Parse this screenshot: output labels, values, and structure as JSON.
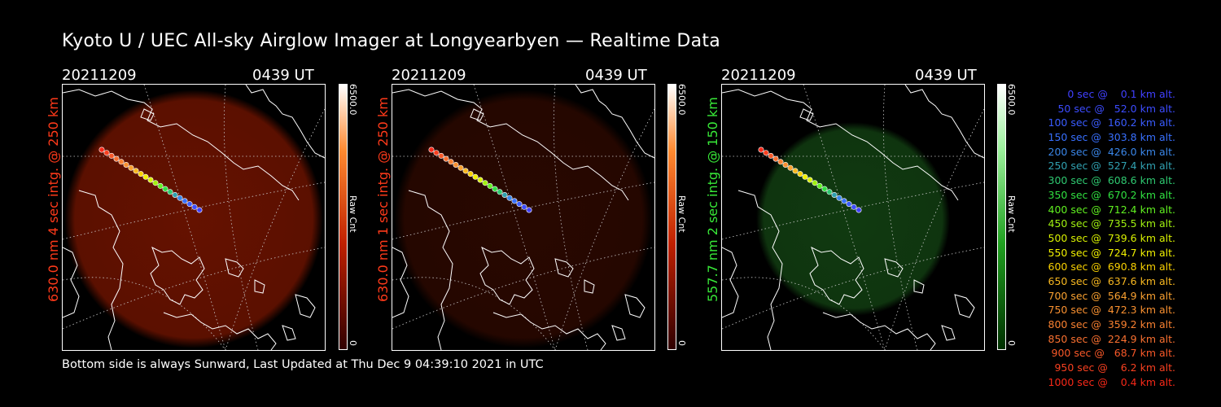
{
  "title": "Kyoto U / UEC All-sky Airglow Imager at Longyearbyen — Realtime Data",
  "colors": {
    "red_label": "#ff3a1a",
    "green_label": "#38e838"
  },
  "panels": [
    {
      "date": "20211209",
      "time": "0439 UT",
      "label": "630.0 nm 4 sec intg. @ 250 km",
      "cbar_max": "6500.0",
      "cbar_min": "0",
      "cbar_unit": "Raw Cnt",
      "glow_color": "#b82000",
      "glow_intensity": 0.55,
      "glow_radius_fraction": 0.56
    },
    {
      "date": "20211209",
      "time": "0439 UT",
      "label": "630.0 nm 1 sec intg. @ 250 km",
      "cbar_max": "6500.0",
      "cbar_min": "0",
      "cbar_unit": "Raw Cnt",
      "glow_color": "#4a0e00",
      "glow_intensity": 0.55,
      "glow_radius_fraction": 0.56
    },
    {
      "date": "20211209",
      "time": "0439 UT",
      "label": "557.7 nm 2 sec intg. @ 150 km",
      "cbar_max": "6500.0",
      "cbar_min": "0",
      "cbar_unit": "Raw Cnt",
      "glow_color": "#1e6a1e",
      "glow_intensity": 0.55,
      "glow_radius_fraction": 0.42
    }
  ],
  "legend": [
    {
      "text": "   0 sec @    0.1 km alt.",
      "color": "#4040ff"
    },
    {
      "text": "  50 sec @   52.0 km alt.",
      "color": "#3c4cff"
    },
    {
      "text": " 100 sec @  160.2 km alt.",
      "color": "#3a5cff"
    },
    {
      "text": " 150 sec @  303.8 km alt.",
      "color": "#3870ff"
    },
    {
      "text": " 200 sec @  426.0 km alt.",
      "color": "#3a86e8"
    },
    {
      "text": " 250 sec @  527.4 km alt.",
      "color": "#30a0b0"
    },
    {
      "text": " 300 sec @  608.6 km alt.",
      "color": "#2ec870"
    },
    {
      "text": " 350 sec @  670.2 km alt.",
      "color": "#30e040"
    },
    {
      "text": " 400 sec @  712.4 km alt.",
      "color": "#60f020"
    },
    {
      "text": " 450 sec @  735.5 km alt.",
      "color": "#a0f010"
    },
    {
      "text": " 500 sec @  739.6 km alt.",
      "color": "#d8f000"
    },
    {
      "text": " 550 sec @  724.7 km alt.",
      "color": "#f0f000"
    },
    {
      "text": " 600 sec @  690.8 km alt.",
      "color": "#f8d000"
    },
    {
      "text": " 650 sec @  637.6 km alt.",
      "color": "#f8b820"
    },
    {
      "text": " 700 sec @  564.9 km alt.",
      "color": "#f8a030"
    },
    {
      "text": " 750 sec @  472.3 km alt.",
      "color": "#f89030"
    },
    {
      "text": " 800 sec @  359.2 km alt.",
      "color": "#f88030"
    },
    {
      "text": " 850 sec @  224.9 km alt.",
      "color": "#f87030"
    },
    {
      "text": " 900 sec @   68.7 km alt.",
      "color": "#f85828"
    },
    {
      "text": " 950 sec @    6.2 km alt.",
      "color": "#f84020"
    },
    {
      "text": "1000 sec @    0.4 km alt.",
      "color": "#f82818"
    }
  ],
  "footer": "Bottom side is always Sunward, Last Updated at Thu Dec  9 04:39:10 2021 in UTC"
}
